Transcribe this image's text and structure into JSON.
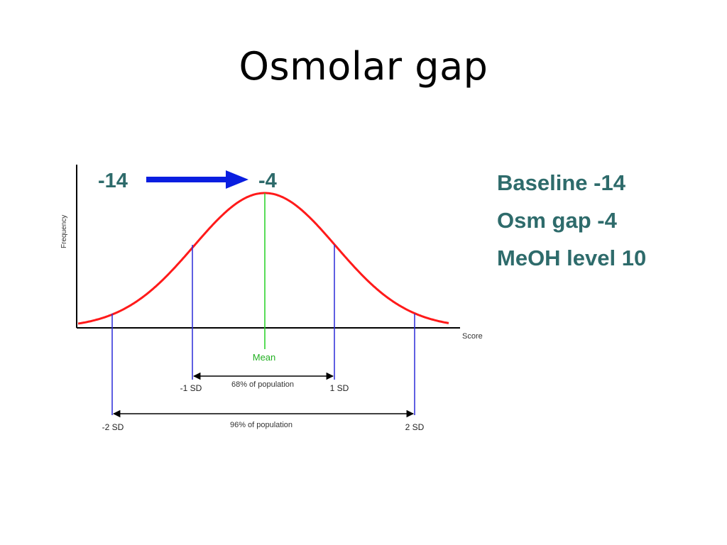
{
  "title": "Osmolar gap",
  "diagram": {
    "arrow_from": "-14",
    "arrow_to": "-4",
    "y_axis_label": "Frequency",
    "x_axis_label": "Score",
    "mean_label": "Mean",
    "sd_labels": {
      "minus_1": "-1 SD",
      "plus_1": "1 SD",
      "minus_2": "-2 SD",
      "plus_2": "2 SD"
    },
    "span_1sd": "68% of population",
    "span_2sd": "96% of population",
    "colors": {
      "curve": "#ff1a1a",
      "sd_lines": "#2a2ad8",
      "mean_line": "#22d022",
      "arrow": "#0a1ee0",
      "text_teal": "#2e6b6b"
    }
  },
  "notes": [
    "Baseline -14",
    "Osm gap -4",
    "MeOH level 10"
  ]
}
